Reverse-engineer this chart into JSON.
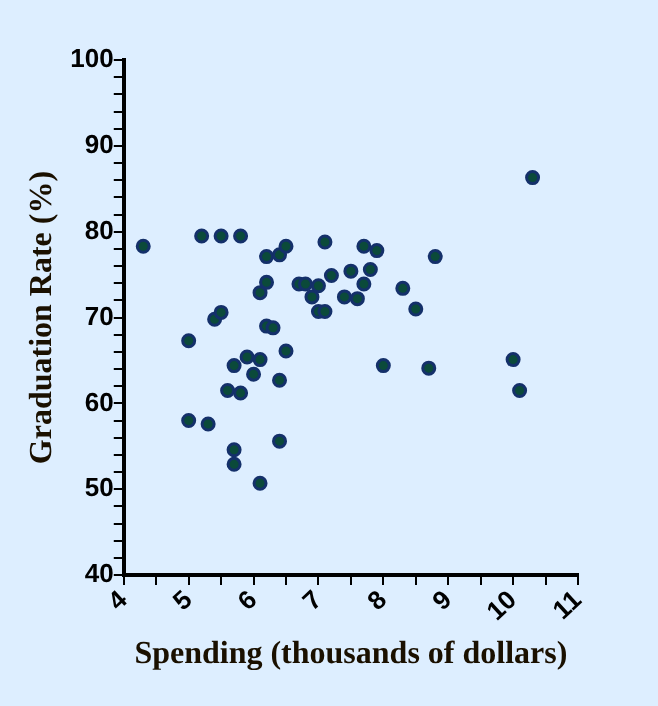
{
  "chart_data": {
    "type": "scatter",
    "xlabel": "Spending (thousands of dollars)",
    "ylabel": "Graduation Rate (%)",
    "x": [
      4.3,
      5.2,
      5.5,
      5.8,
      5.0,
      5.4,
      5.5,
      5.0,
      5.3,
      5.7,
      5.6,
      5.8,
      5.9,
      5.7,
      5.7,
      6.1,
      6.0,
      6.1,
      6.2,
      6.3,
      6.1,
      6.2,
      6.2,
      6.4,
      6.5,
      6.4,
      6.4,
      6.5,
      6.7,
      6.8,
      6.9,
      7.0,
      7.1,
      7.0,
      7.1,
      7.2,
      7.4,
      7.5,
      7.6,
      7.7,
      7.7,
      7.8,
      7.9,
      8.0,
      8.3,
      8.5,
      8.7,
      8.8,
      10.0,
      10.1,
      10.3
    ],
    "series": [
      {
        "color": "#14306a",
        "values": [
          78.3,
          79.5,
          79.5,
          79.5,
          67.3,
          69.8,
          70.6,
          58.0,
          57.6,
          64.4,
          61.5,
          61.2,
          65.4,
          54.6,
          52.9,
          50.7,
          63.4,
          65.1,
          69.0,
          68.8,
          72.9,
          74.1,
          77.1,
          77.3,
          78.3,
          62.7,
          55.6,
          66.1,
          73.9,
          73.9,
          72.4,
          70.7,
          70.7,
          73.7,
          78.8,
          74.9,
          72.4,
          75.4,
          72.2,
          73.9,
          78.3,
          75.6,
          77.8,
          64.4,
          73.4,
          71.0,
          64.1,
          77.1,
          65.1,
          61.5,
          86.3
        ]
      }
    ],
    "xlim": [
      4,
      11
    ],
    "ylim": [
      40,
      100
    ],
    "xticks": [
      4,
      {
        "value": 4.5,
        "label": null
      },
      5,
      {
        "value": 5.5,
        "label": null
      },
      6,
      {
        "value": 6.5,
        "label": null
      },
      7,
      {
        "value": 7.5,
        "label": null
      },
      8,
      {
        "value": 8.5,
        "label": null
      },
      9,
      {
        "value": 9.5,
        "label": null
      },
      10,
      {
        "value": 10.5,
        "label": null
      },
      11
    ],
    "yticks": [
      40,
      {
        "value": 42,
        "label": null
      },
      {
        "value": 44,
        "label": null
      },
      {
        "value": 46,
        "label": null
      },
      {
        "value": 48,
        "label": null
      },
      50,
      {
        "value": 52,
        "label": null
      },
      {
        "value": 54,
        "label": null
      },
      {
        "value": 56,
        "label": null
      },
      {
        "value": 58,
        "label": null
      },
      60,
      {
        "value": 62,
        "label": null
      },
      {
        "value": 64,
        "label": null
      },
      {
        "value": 66,
        "label": null
      },
      {
        "value": 68,
        "label": null
      },
      70,
      {
        "value": 72,
        "label": null
      },
      {
        "value": 74,
        "label": null
      },
      {
        "value": 76,
        "label": null
      },
      {
        "value": 78,
        "label": null
      },
      80,
      {
        "value": 82,
        "label": null
      },
      {
        "value": 84,
        "label": null
      },
      {
        "value": 86,
        "label": null
      },
      {
        "value": 88,
        "label": null
      },
      90,
      {
        "value": 92,
        "label": null
      },
      {
        "value": 94,
        "label": null
      },
      {
        "value": 96,
        "label": null
      },
      {
        "value": 98,
        "label": null
      },
      100
    ],
    "grid": false,
    "legend": false,
    "marker": "circle"
  }
}
